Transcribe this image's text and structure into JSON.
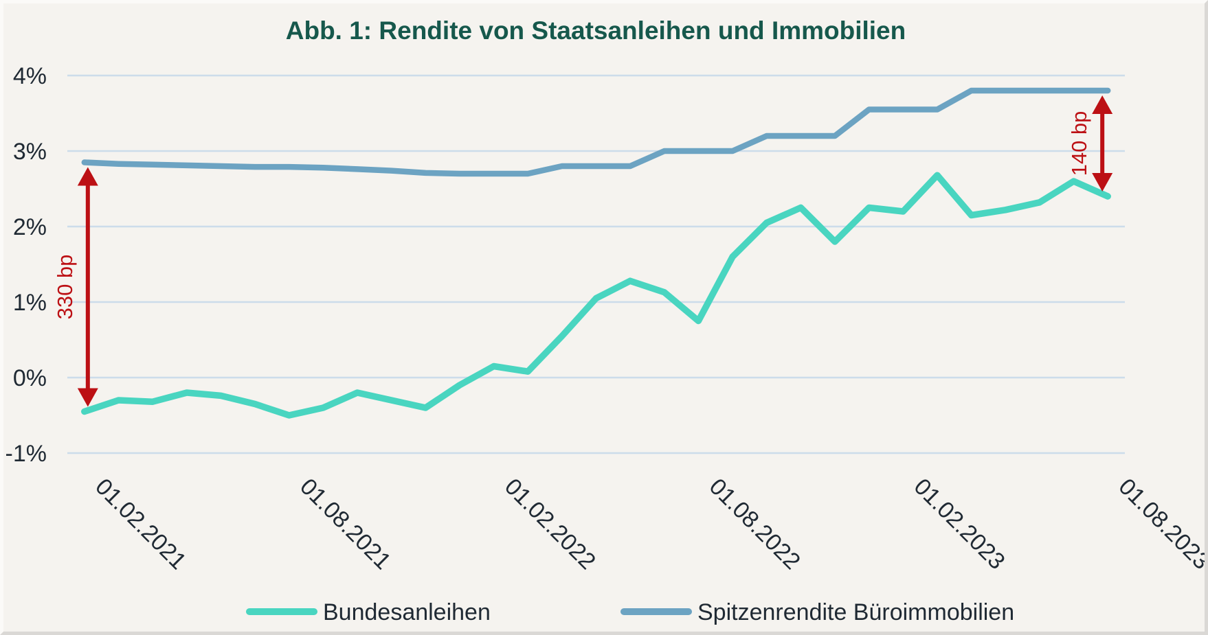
{
  "title": "Abb. 1: Rendite von Staatsanleihen und Immobilien",
  "colors": {
    "background": "#f5f3ef",
    "grid": "#ccdcea",
    "bonds_line": "#49d5c0",
    "office_line": "#6ca3c2",
    "annotation_red": "#bc1014",
    "title_text": "#16584c",
    "axis_text": "#1f2933"
  },
  "y_axis": {
    "tick_labels": [
      "4%",
      "3%",
      "2%",
      "1%",
      "0%",
      "-1%"
    ],
    "tick_values": [
      4,
      3,
      2,
      1,
      0,
      -1
    ]
  },
  "x_axis": {
    "tick_labels": [
      "01.02.2021",
      "01.08.2021",
      "01.02.2022",
      "01.08.2022",
      "01.02.2023",
      "01.08.2023"
    ],
    "tick_indices": [
      0,
      6,
      12,
      18,
      24,
      30
    ]
  },
  "legend": {
    "items": [
      {
        "label": "Bundesanleihen",
        "series": "bonds"
      },
      {
        "label": "Spitzenrendite Büroimmobilien",
        "series": "office"
      }
    ]
  },
  "annotations": [
    {
      "label": "330 bp",
      "x_index": 0,
      "value_low": -0.45,
      "value_high": 2.85
    },
    {
      "label": "140 bp",
      "x_index": 30,
      "value_low": 2.4,
      "value_high": 3.8
    }
  ],
  "chart_data": {
    "type": "line",
    "title": "Abb. 1: Rendite von Staatsanleihen und Immobilien",
    "x": [
      "01.02.2021",
      "01.03.2021",
      "01.04.2021",
      "01.05.2021",
      "01.06.2021",
      "01.07.2021",
      "01.08.2021",
      "01.09.2021",
      "01.10.2021",
      "01.11.2021",
      "01.12.2021",
      "01.01.2022",
      "01.02.2022",
      "01.03.2022",
      "01.04.2022",
      "01.05.2022",
      "01.06.2022",
      "01.07.2022",
      "01.08.2022",
      "01.09.2022",
      "01.10.2022",
      "01.11.2022",
      "01.12.2022",
      "01.01.2023",
      "01.02.2023",
      "01.03.2023",
      "01.04.2023",
      "01.05.2023",
      "01.06.2023",
      "01.07.2023",
      "01.08.2023"
    ],
    "series": [
      {
        "name": "Bundesanleihen",
        "color": "#49d5c0",
        "values": [
          -0.45,
          -0.3,
          -0.32,
          -0.2,
          -0.24,
          -0.35,
          -0.5,
          -0.4,
          -0.2,
          -0.3,
          -0.4,
          -0.1,
          0.15,
          0.08,
          0.55,
          1.05,
          1.28,
          1.13,
          0.75,
          1.6,
          2.05,
          2.25,
          1.8,
          2.25,
          2.2,
          2.68,
          2.15,
          2.22,
          2.32,
          2.6,
          2.4
        ]
      },
      {
        "name": "Spitzenrendite Büroimmobilien",
        "color": "#6ca3c2",
        "values": [
          2.85,
          2.83,
          2.82,
          2.81,
          2.8,
          2.79,
          2.79,
          2.78,
          2.76,
          2.74,
          2.71,
          2.7,
          2.7,
          2.7,
          2.8,
          2.8,
          2.8,
          3.0,
          3.0,
          3.0,
          3.2,
          3.2,
          3.2,
          3.55,
          3.55,
          3.55,
          3.8,
          3.8,
          3.8,
          3.8,
          3.8
        ]
      }
    ],
    "ylim": [
      -1,
      4
    ],
    "y_unit": "%",
    "grid": "horizontal",
    "legend_position": "bottom",
    "annotations": [
      {
        "label": "330 bp",
        "x": "01.02.2021",
        "spread_bp": 330
      },
      {
        "label": "140 bp",
        "x": "01.08.2023",
        "spread_bp": 140
      }
    ]
  }
}
